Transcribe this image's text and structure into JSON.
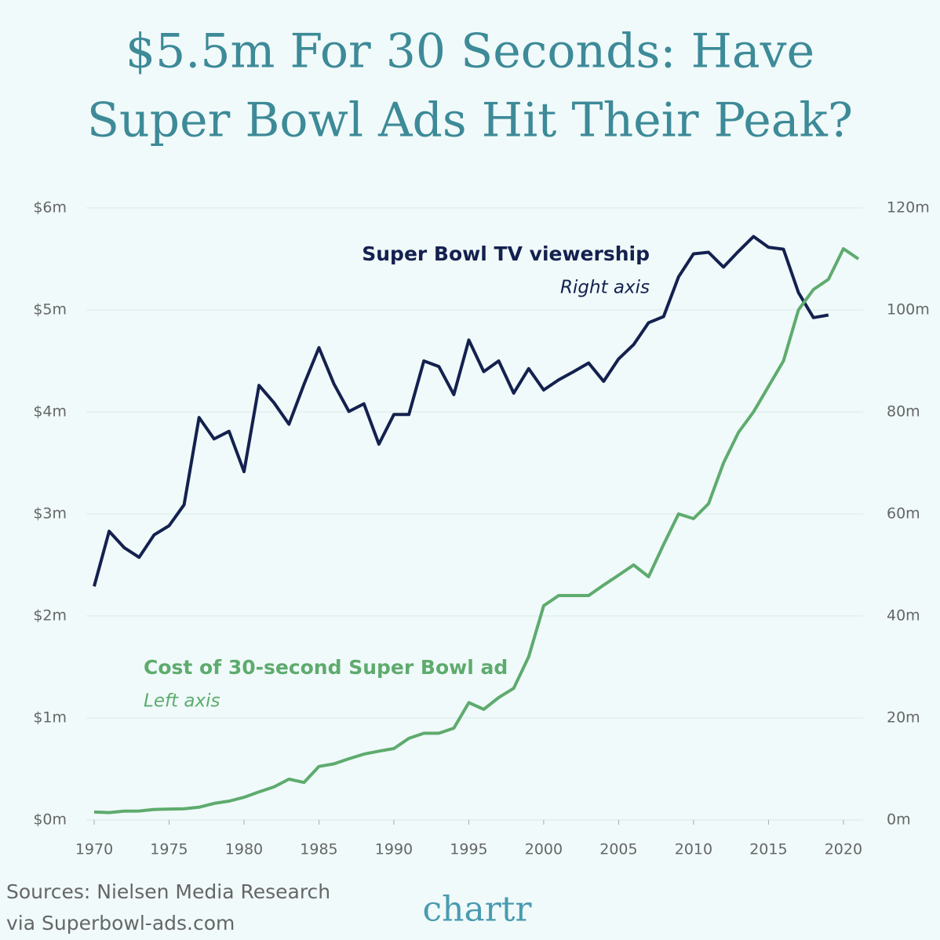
{
  "chart_data": {
    "type": "line",
    "title": [
      "$5.5m For 30 Seconds: Have",
      "Super Bowl Ads Hit Their Peak?"
    ],
    "x": [
      1970,
      1971,
      1972,
      1973,
      1974,
      1975,
      1976,
      1977,
      1978,
      1979,
      1980,
      1981,
      1982,
      1983,
      1984,
      1985,
      1986,
      1987,
      1988,
      1989,
      1990,
      1991,
      1992,
      1993,
      1994,
      1995,
      1996,
      1997,
      1998,
      1999,
      2000,
      2001,
      2002,
      2003,
      2004,
      2005,
      2006,
      2007,
      2008,
      2009,
      2010,
      2011,
      2012,
      2013,
      2014,
      2015,
      2016,
      2017,
      2018,
      2019,
      2020,
      2021
    ],
    "xlim": [
      1970,
      2021
    ],
    "xticks": [
      1970,
      1975,
      1980,
      1985,
      1990,
      1995,
      2000,
      2005,
      2010,
      2015,
      2020
    ],
    "ylim": [
      0,
      6
    ],
    "yticks": [
      {
        "value": 0,
        "label": "$0m"
      },
      {
        "value": 1,
        "label": "$1m"
      },
      {
        "value": 2,
        "label": "$2m"
      },
      {
        "value": 3,
        "label": "$3m"
      },
      {
        "value": 4,
        "label": "$4m"
      },
      {
        "value": 5,
        "label": "$5m"
      },
      {
        "value": 6,
        "label": "$6m"
      }
    ],
    "y2lim": [
      0,
      120
    ],
    "y2ticks": [
      {
        "value": 0,
        "label": "0m"
      },
      {
        "value": 20,
        "label": "20m"
      },
      {
        "value": 40,
        "label": "40m"
      },
      {
        "value": 60,
        "label": "60m"
      },
      {
        "value": 80,
        "label": "80m"
      },
      {
        "value": 100,
        "label": "100m"
      },
      {
        "value": 120,
        "label": "120m"
      }
    ],
    "grid": true,
    "series": [
      {
        "name": "Super Bowl TV viewership",
        "annotation": "Right axis",
        "color": "#14214f",
        "axis": "y2",
        "values": [
          45.8,
          56.6,
          53.4,
          51.5,
          55.9,
          57.7,
          61.8,
          78.9,
          74.7,
          76.2,
          68.3,
          85.2,
          81.8,
          77.6,
          85.4,
          92.6,
          85.5,
          80.1,
          81.6,
          73.7,
          79.5,
          79.5,
          90.0,
          88.9,
          83.4,
          94.1,
          87.9,
          90.0,
          83.7,
          88.5,
          84.3,
          86.3,
          87.9,
          89.6,
          86.0,
          90.4,
          93.2,
          97.5,
          98.7,
          106.5,
          111.0,
          111.3,
          108.4,
          111.5,
          114.4,
          112.3,
          111.9,
          103.4,
          98.5,
          99.0,
          null,
          null
        ]
      },
      {
        "name": "Cost of 30-second Super Bowl ad",
        "annotation": "Left axis",
        "color": "#5eab6e",
        "values": [
          0.078,
          0.072,
          0.086,
          0.088,
          0.103,
          0.107,
          0.11,
          0.125,
          0.162,
          0.185,
          0.222,
          0.275,
          0.324,
          0.4,
          0.368,
          0.525,
          0.55,
          0.6,
          0.645,
          0.675,
          0.7,
          0.8,
          0.85,
          0.85,
          0.9,
          1.15,
          1.085,
          1.2,
          1.291,
          1.6,
          2.1,
          2.2,
          2.2,
          2.2,
          2.302,
          2.4,
          2.5,
          2.385,
          2.7,
          3.0,
          2.954,
          3.1,
          3.5,
          3.8,
          4.0,
          4.25,
          4.5,
          5.0,
          5.2,
          5.3,
          5.6,
          5.5
        ]
      }
    ],
    "sources": [
      "Sources: Nielsen Media Research",
      "via Superbowl-ads.com"
    ],
    "brand": "chartr"
  }
}
